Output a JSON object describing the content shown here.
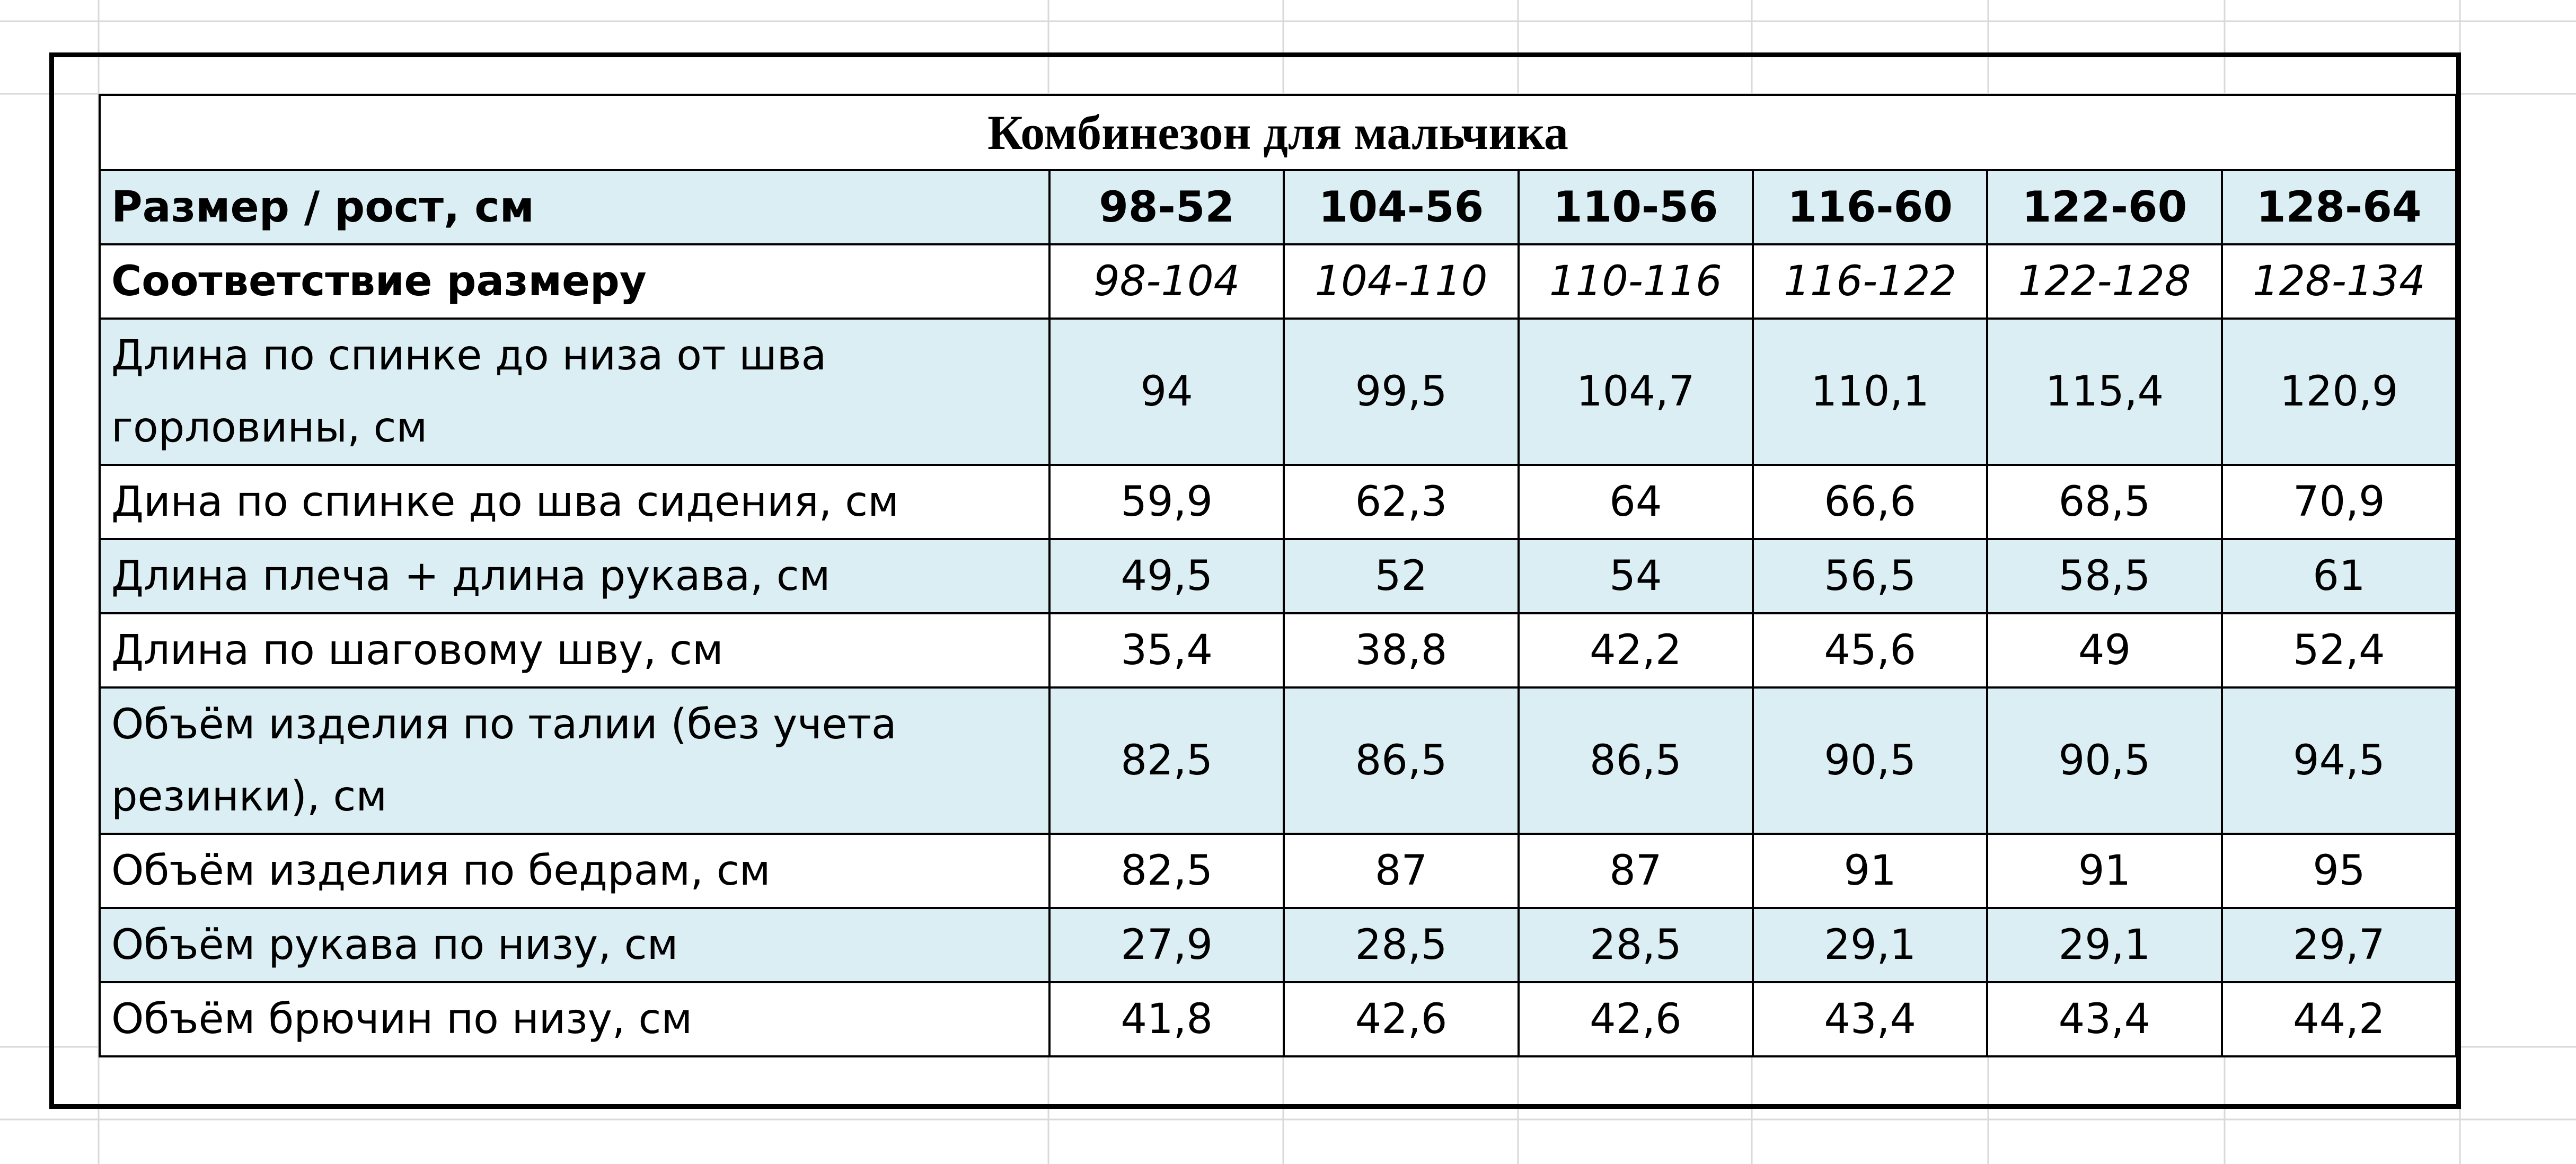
{
  "title": "Комбинезон для мальчика",
  "table": {
    "header": [
      "Размер / рост, см",
      "98-52",
      "104-56",
      "110-56",
      "116-60",
      "122-60",
      "128-64"
    ],
    "rows": [
      [
        "Соответствие размеру",
        "98-104",
        "104-110",
        "110-116",
        "116-122",
        "122-128",
        "128-134"
      ],
      [
        "Длина по спинке до низа от шва горловины, см",
        "94",
        "99,5",
        "104,7",
        "110,1",
        "115,4",
        "120,9"
      ],
      [
        "Дина по спинке до шва сидения, см",
        "59,9",
        "62,3",
        "64",
        "66,6",
        "68,5",
        "70,9"
      ],
      [
        "Длина плеча + длина рукава, см",
        "49,5",
        "52",
        "54",
        "56,5",
        "58,5",
        "61"
      ],
      [
        "Длина по шаговому шву, см",
        "35,4",
        "38,8",
        "42,2",
        "45,6",
        "49",
        "52,4"
      ],
      [
        "Объём изделия по талии (без учета резинки), см",
        "82,5",
        "86,5",
        "86,5",
        "90,5",
        "90,5",
        "94,5"
      ],
      [
        "Объём изделия по бедрам, см",
        "82,5",
        "87",
        "87",
        "91",
        "91",
        "95"
      ],
      [
        "Объём рукава по низу, см",
        "27,9",
        "28,5",
        "28,5",
        "29,1",
        "29,1",
        "29,7"
      ],
      [
        "Объём брючин по низу, см",
        "41,8",
        "42,6",
        "42,6",
        "43,4",
        "43,4",
        "44,2"
      ]
    ]
  }
}
